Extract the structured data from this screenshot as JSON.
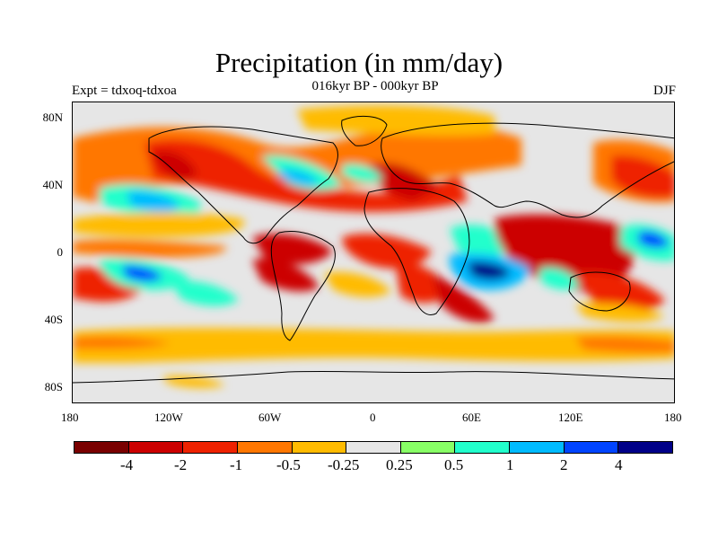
{
  "header": {
    "title": "Precipitation (in mm/day)",
    "subtitle": "016kyr BP - 000kyr BP",
    "expt": "Expt = tdxoq-tdxoa",
    "season": "DJF"
  },
  "axes": {
    "lat_labels": [
      "80N",
      "40N",
      "0",
      "40S",
      "80S"
    ],
    "lon_labels": [
      "180",
      "120W",
      "60W",
      "0",
      "60E",
      "120E",
      "180"
    ]
  },
  "colorbar": {
    "colors": [
      "#7a0000",
      "#cc0000",
      "#ee2200",
      "#ff7700",
      "#ffbb00",
      "#e6e6e6",
      "#88ff66",
      "#22ffcc",
      "#00bbff",
      "#0044ff",
      "#000088"
    ],
    "labels": [
      "-4",
      "-2",
      "-1",
      "-0.5",
      "-0.25",
      "0.25",
      "0.5",
      "1",
      "2",
      "4"
    ]
  }
}
